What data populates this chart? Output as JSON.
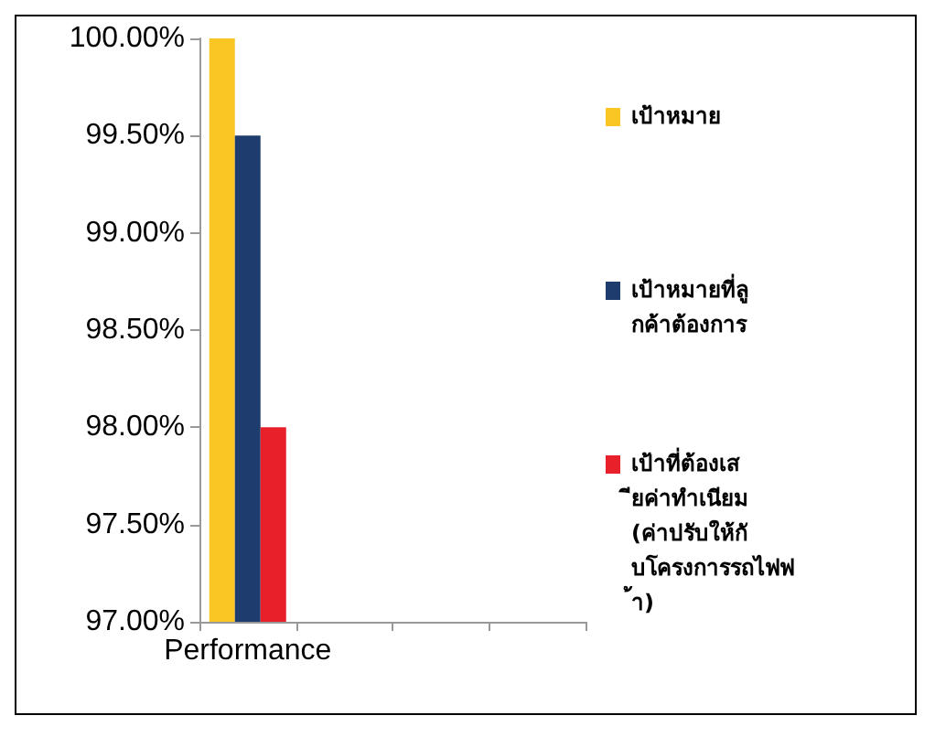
{
  "chart_data": {
    "type": "bar",
    "categories": [
      "Performance",
      null,
      null,
      null
    ],
    "series": [
      {
        "name": "เป้าหมาย",
        "color": "#f9c623",
        "values": [
          100,
          null,
          null,
          null
        ]
      },
      {
        "name": "เป้าหมายที่ลูกค้าต้องการ",
        "color": "#1f3c6e",
        "values": [
          99.5,
          null,
          null,
          null
        ]
      },
      {
        "name": "เป้าที่ต้องเสียค่าทำเนียม (ค่าปรับให้กับโครงการรถไฟฟ้า)",
        "color": "#e8202a",
        "values": [
          98,
          null,
          null,
          null
        ]
      }
    ],
    "ylim": [
      97,
      100
    ],
    "yticks": [
      {
        "value": 97,
        "label": "97.00%"
      },
      {
        "value": 97.5,
        "label": "97.50%"
      },
      {
        "value": 98,
        "label": "98.00%"
      },
      {
        "value": 98.5,
        "label": "98.50%"
      },
      {
        "value": 99,
        "label": "99.00%"
      },
      {
        "value": 99.5,
        "label": "99.50%"
      },
      {
        "value": 100,
        "label": "100.00%"
      }
    ],
    "grid": false,
    "legend": "right"
  }
}
